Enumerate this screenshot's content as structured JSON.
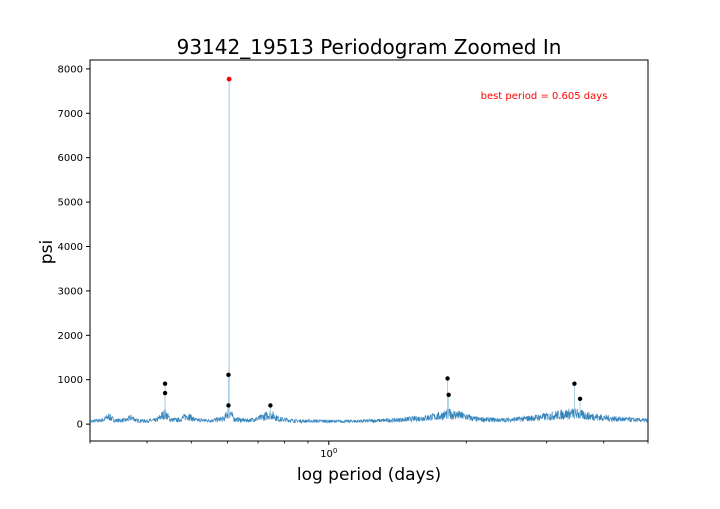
{
  "chart_data": {
    "type": "line",
    "title": "93142_19513 Periodogram Zoomed In",
    "xlabel": "log period (days)",
    "ylabel": "psi",
    "xscale": "log",
    "xlim": [
      0.3,
      5.0
    ],
    "ylim": [
      -380,
      8200
    ],
    "x_ticks": [
      {
        "value": 1.0,
        "label": "10^0"
      }
    ],
    "y_ticks": [
      0,
      1000,
      2000,
      3000,
      4000,
      5000,
      6000,
      7000,
      8000
    ],
    "colors": {
      "line": "#1f77b4",
      "best_point": "#ff0000",
      "peak_points": "#000000",
      "annotation": "#ff0000"
    },
    "annotation": "best period = 0.605 days",
    "best_point": {
      "x": 0.605,
      "y": 7770
    },
    "spike": {
      "x": 0.605,
      "y": 7770
    },
    "peak_points": [
      {
        "x": 0.438,
        "y": 910
      },
      {
        "x": 0.438,
        "y": 700
      },
      {
        "x": 0.603,
        "y": 1110
      },
      {
        "x": 0.603,
        "y": 420
      },
      {
        "x": 0.745,
        "y": 420
      },
      {
        "x": 1.82,
        "y": 1030
      },
      {
        "x": 1.83,
        "y": 660
      },
      {
        "x": 3.45,
        "y": 910
      },
      {
        "x": 3.55,
        "y": 570
      }
    ],
    "series_profile": [
      [
        0.3,
        60
      ],
      [
        0.32,
        90
      ],
      [
        0.33,
        170
      ],
      [
        0.34,
        80
      ],
      [
        0.36,
        90
      ],
      [
        0.37,
        150
      ],
      [
        0.38,
        80
      ],
      [
        0.4,
        70
      ],
      [
        0.42,
        90
      ],
      [
        0.438,
        240
      ],
      [
        0.45,
        100
      ],
      [
        0.47,
        90
      ],
      [
        0.49,
        190
      ],
      [
        0.51,
        90
      ],
      [
        0.55,
        80
      ],
      [
        0.59,
        120
      ],
      [
        0.605,
        300
      ],
      [
        0.62,
        110
      ],
      [
        0.66,
        80
      ],
      [
        0.7,
        120
      ],
      [
        0.745,
        220
      ],
      [
        0.78,
        110
      ],
      [
        0.85,
        70
      ],
      [
        0.95,
        70
      ],
      [
        1.05,
        60
      ],
      [
        1.2,
        70
      ],
      [
        1.4,
        90
      ],
      [
        1.6,
        130
      ],
      [
        1.75,
        180
      ],
      [
        1.82,
        230
      ],
      [
        1.95,
        190
      ],
      [
        2.1,
        110
      ],
      [
        2.4,
        90
      ],
      [
        2.7,
        120
      ],
      [
        3.0,
        170
      ],
      [
        3.2,
        210
      ],
      [
        3.45,
        240
      ],
      [
        3.7,
        180
      ],
      [
        4.2,
        120
      ],
      [
        5.0,
        80
      ]
    ]
  }
}
